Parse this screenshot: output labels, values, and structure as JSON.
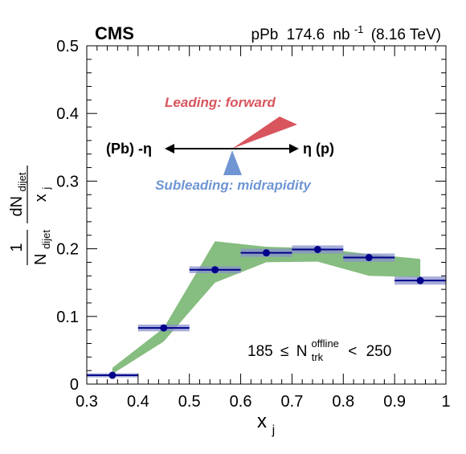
{
  "chart_data": {
    "type": "scatter",
    "experiment": "CMS",
    "dataset": {
      "system": "pPb",
      "lumi_value": "174.6",
      "lumi_unit": "nb",
      "lumi_exponent": "-1",
      "energy": "(8.16 TeV)"
    },
    "xlabel": {
      "base": "x",
      "sub": "j"
    },
    "ylabel": {
      "numerator_one": "1",
      "denominator_base": "N",
      "denominator_sub": "dijet",
      "frac_num_base": "dN",
      "frac_num_sub": "dijet",
      "frac_den_base": "x",
      "frac_den_sub": "j"
    },
    "xlim": [
      0.3,
      1.0
    ],
    "ylim": [
      0,
      0.5
    ],
    "xticks": [
      "0.3",
      "0.4",
      "0.5",
      "0.6",
      "0.7",
      "0.8",
      "0.9",
      "1"
    ],
    "yticks": [
      "0",
      "0.1",
      "0.2",
      "0.3",
      "0.4",
      "0.5"
    ],
    "series": [
      {
        "x": [
          0.35,
          0.45,
          0.55,
          0.65,
          0.75,
          0.85,
          0.95
        ],
        "xerr": [
          0.05,
          0.05,
          0.05,
          0.05,
          0.05,
          0.05,
          0.05
        ],
        "y": [
          0.013,
          0.083,
          0.169,
          0.194,
          0.199,
          0.187,
          0.153
        ],
        "sys_err": [
          0.003,
          0.005,
          0.005,
          0.006,
          0.006,
          0.006,
          0.006
        ],
        "color": "#00008b",
        "sys_color": "#8a91cc"
      }
    ],
    "band": {
      "color": "#86bd80",
      "x": [
        0.35,
        0.45,
        0.55,
        0.65,
        0.75,
        0.85,
        0.95
      ],
      "upper": [
        0.024,
        0.083,
        0.211,
        0.203,
        0.201,
        0.192,
        0.185
      ],
      "lower": [
        0.015,
        0.063,
        0.15,
        0.18,
        0.181,
        0.16,
        0.158
      ]
    },
    "annotations": {
      "leading": "Leading: forward",
      "subleading": "Subleading: midrapidity",
      "left_label": "(Pb) -η",
      "right_label": "η (p)",
      "multiplicity": {
        "low": "185",
        "le": "≤",
        "base": "N",
        "sub": "trk",
        "sup": "offline",
        "lt": "<",
        "high": "250"
      }
    },
    "colors": {
      "leading": "#d9555d",
      "subleading": "#6f95d3"
    }
  }
}
